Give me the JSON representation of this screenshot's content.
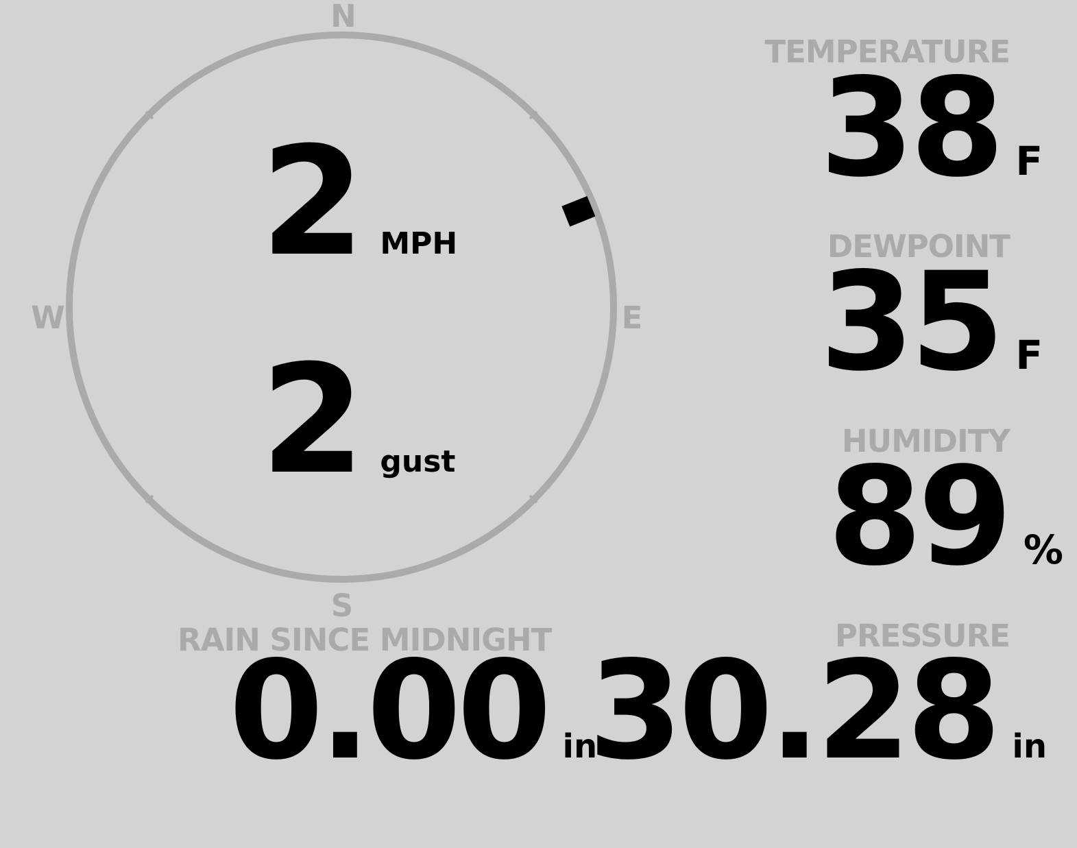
{
  "wind": {
    "speed": "2",
    "speed_unit": "MPH",
    "gust": "2",
    "gust_unit": "gust",
    "direction_degrees": 68,
    "compass": {
      "n": "N",
      "e": "E",
      "s": "S",
      "w": "W"
    }
  },
  "temperature": {
    "label": "TEMPERATURE",
    "value": "38",
    "unit": "F"
  },
  "dewpoint": {
    "label": "DEWPOINT",
    "value": "35",
    "unit": "F"
  },
  "humidity": {
    "label": "HUMIDITY",
    "value": "89",
    "unit": "%"
  },
  "rain": {
    "label": "RAIN SINCE MIDNIGHT",
    "value": "0.00",
    "unit": "in"
  },
  "pressure": {
    "label": "PRESSURE",
    "value": "30.28",
    "unit": "in"
  },
  "colors": {
    "background": "#d3d3d3",
    "muted": "#aaaaaa",
    "value": "#000000"
  }
}
